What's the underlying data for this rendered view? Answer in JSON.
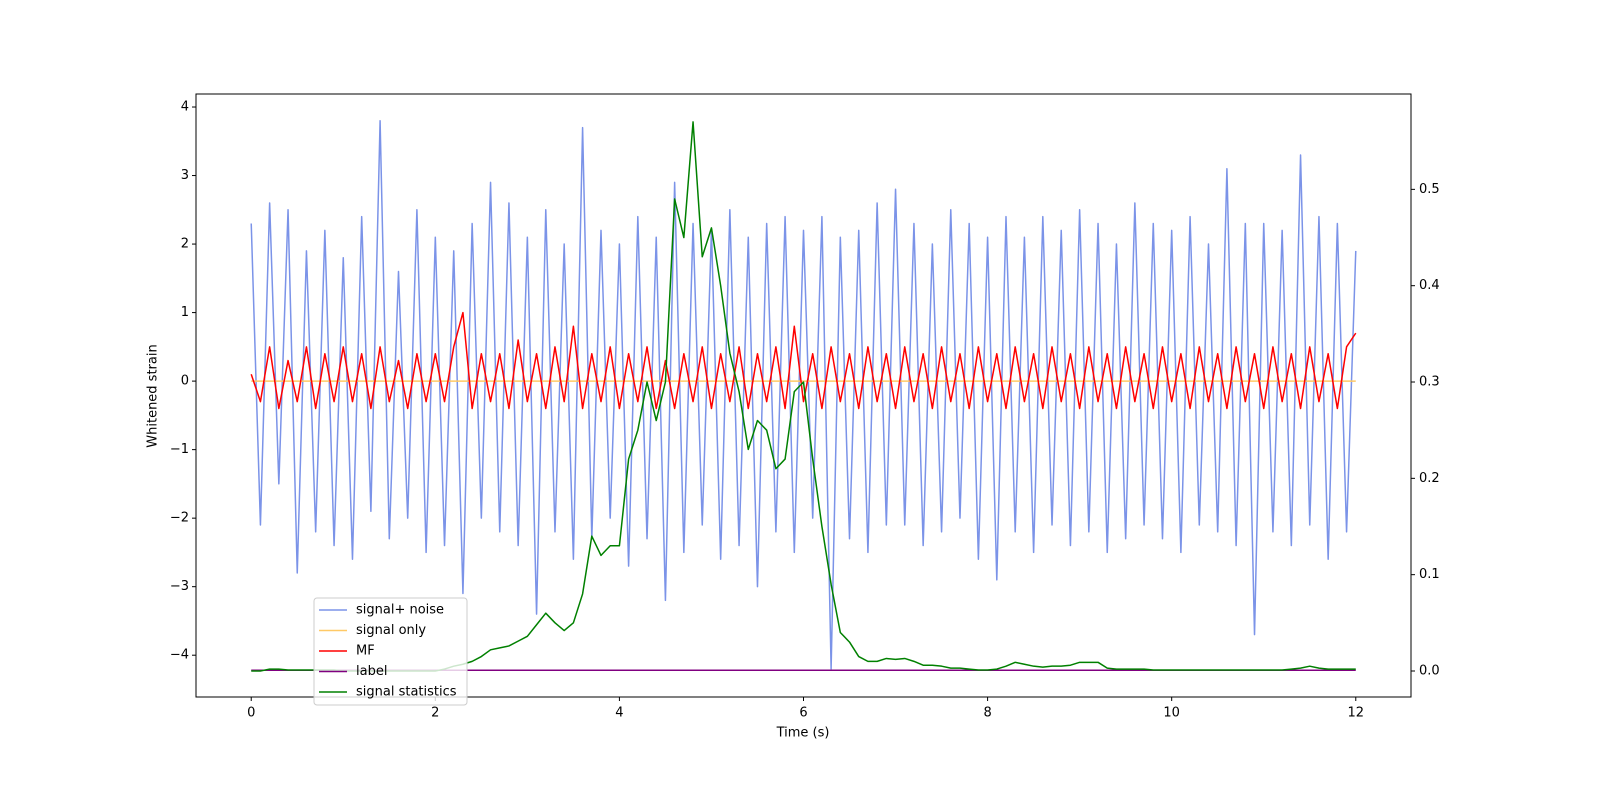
{
  "chart_data": {
    "type": "line",
    "xlabel": "Time (s)",
    "ylabel": "Whitened strain",
    "x": [
      0,
      0.1,
      0.2,
      0.3,
      0.4,
      0.5,
      0.6,
      0.7,
      0.8,
      0.9,
      1,
      1.1,
      1.2,
      1.3,
      1.4,
      1.5,
      1.6,
      1.7,
      1.8,
      1.9,
      2,
      2.1,
      2.2,
      2.3,
      2.4,
      2.5,
      2.6,
      2.7,
      2.8,
      2.9,
      3,
      3.1,
      3.2,
      3.3,
      3.4,
      3.5,
      3.6,
      3.7,
      3.8,
      3.9,
      4,
      4.1,
      4.2,
      4.3,
      4.4,
      4.5,
      4.6,
      4.7,
      4.8,
      4.9,
      5,
      5.1,
      5.2,
      5.3,
      5.4,
      5.5,
      5.6,
      5.7,
      5.8,
      5.9,
      6,
      6.1,
      6.2,
      6.3,
      6.4,
      6.5,
      6.6,
      6.7,
      6.8,
      6.9,
      7,
      7.1,
      7.2,
      7.3,
      7.4,
      7.5,
      7.6,
      7.7,
      7.8,
      7.9,
      8,
      8.1,
      8.2,
      8.3,
      8.4,
      8.5,
      8.6,
      8.7,
      8.8,
      8.9,
      9,
      9.1,
      9.2,
      9.3,
      9.4,
      9.5,
      9.6,
      9.7,
      9.8,
      9.9,
      10,
      10.1,
      10.2,
      10.3,
      10.4,
      10.5,
      10.6,
      10.7,
      10.8,
      10.9,
      11,
      11.1,
      11.2,
      11.3,
      11.4,
      11.5,
      11.6,
      11.7,
      11.8,
      11.9,
      12
    ],
    "series": [
      {
        "name": "signal+ noise",
        "color": "#7b93e8",
        "values": [
          2.3,
          -2.1,
          2.6,
          -1.5,
          2.5,
          -2.8,
          1.9,
          -2.2,
          2.2,
          -2.4,
          1.8,
          -2.6,
          2.4,
          -1.9,
          3.8,
          -2.3,
          1.6,
          -2.0,
          2.5,
          -2.5,
          2.1,
          -2.4,
          1.9,
          -3.1,
          2.3,
          -2.0,
          2.9,
          -2.2,
          2.6,
          -2.4,
          2.1,
          -3.4,
          2.5,
          -2.2,
          2.0,
          -2.6,
          3.7,
          -2.3,
          2.2,
          -2.0,
          2.0,
          -2.7,
          2.4,
          -2.3,
          2.1,
          -3.2,
          2.9,
          -2.5,
          2.3,
          -2.1,
          2.2,
          -2.6,
          2.5,
          -2.4,
          2.1,
          -3.0,
          2.3,
          -2.2,
          2.4,
          -2.5,
          2.2,
          -2.0,
          2.4,
          -4.2,
          2.1,
          -2.3,
          2.2,
          -2.5,
          2.6,
          -2.1,
          2.8,
          -2.1,
          2.3,
          -2.4,
          2.0,
          -2.2,
          2.5,
          -2.0,
          2.3,
          -2.6,
          2.1,
          -2.9,
          2.4,
          -2.2,
          2.1,
          -2.5,
          2.4,
          -2.1,
          2.2,
          -2.4,
          2.5,
          -2.2,
          2.3,
          -2.5,
          2.0,
          -2.3,
          2.6,
          -2.1,
          2.3,
          -2.3,
          2.2,
          -2.5,
          2.4,
          -2.1,
          2.0,
          -2.2,
          3.1,
          -2.4,
          2.3,
          -3.7,
          2.3,
          -2.2,
          2.2,
          -2.4,
          3.3,
          -2.1,
          2.4,
          -2.6,
          2.3,
          -2.2,
          1.9
        ]
      },
      {
        "name": "signal only",
        "color": "#ffc966",
        "x": [
          0,
          12
        ],
        "values": [
          0,
          0
        ]
      },
      {
        "name": "MF",
        "color": "#ff0000",
        "values": [
          0.1,
          -0.3,
          0.5,
          -0.4,
          0.3,
          -0.3,
          0.5,
          -0.4,
          0.4,
          -0.3,
          0.5,
          -0.3,
          0.4,
          -0.4,
          0.5,
          -0.3,
          0.3,
          -0.4,
          0.4,
          -0.3,
          0.4,
          -0.3,
          0.5,
          1.0,
          -0.4,
          0.4,
          -0.3,
          0.4,
          -0.4,
          0.6,
          -0.3,
          0.4,
          -0.4,
          0.5,
          -0.3,
          0.8,
          -0.4,
          0.4,
          -0.3,
          0.5,
          -0.4,
          0.4,
          -0.3,
          0.5,
          -0.4,
          0.3,
          -0.4,
          0.4,
          -0.3,
          0.5,
          -0.4,
          0.4,
          -0.3,
          0.5,
          -0.4,
          0.4,
          -0.3,
          0.5,
          -0.4,
          0.8,
          -0.3,
          0.4,
          -0.4,
          0.5,
          -0.3,
          0.4,
          -0.4,
          0.5,
          -0.3,
          0.4,
          -0.4,
          0.5,
          -0.3,
          0.4,
          -0.4,
          0.5,
          -0.3,
          0.4,
          -0.4,
          0.5,
          -0.3,
          0.4,
          -0.4,
          0.5,
          -0.3,
          0.4,
          -0.4,
          0.5,
          -0.3,
          0.4,
          -0.4,
          0.5,
          -0.3,
          0.4,
          -0.4,
          0.5,
          -0.3,
          0.4,
          -0.4,
          0.5,
          -0.3,
          0.4,
          -0.4,
          0.5,
          -0.3,
          0.4,
          -0.4,
          0.5,
          -0.3,
          0.4,
          -0.4,
          0.5,
          -0.3,
          0.4,
          -0.4,
          0.5,
          -0.3,
          0.4,
          -0.4,
          0.5,
          0.7
        ]
      },
      {
        "name": "label",
        "color": "#800080",
        "x": [
          0,
          12
        ],
        "values": [
          -4.22,
          -4.22
        ]
      },
      {
        "name": "signal statistics",
        "color": "#008000",
        "axis": "y2",
        "values": [
          0,
          0,
          0.002,
          0.002,
          0.001,
          0.001,
          0.001,
          0.001,
          0.001,
          0.001,
          0,
          0,
          0,
          0,
          0,
          0,
          0,
          0,
          0,
          0,
          0,
          0.002,
          0.005,
          0.007,
          0.01,
          0.015,
          0.022,
          0.024,
          0.026,
          0.031,
          0.036,
          0.048,
          0.06,
          0.05,
          0.042,
          0.05,
          0.08,
          0.14,
          0.12,
          0.13,
          0.13,
          0.22,
          0.25,
          0.3,
          0.26,
          0.3,
          0.49,
          0.45,
          0.57,
          0.43,
          0.46,
          0.4,
          0.33,
          0.29,
          0.23,
          0.26,
          0.25,
          0.21,
          0.22,
          0.29,
          0.3,
          0.22,
          0.15,
          0.09,
          0.04,
          0.03,
          0.015,
          0.01,
          0.01,
          0.013,
          0.012,
          0.013,
          0.01,
          0.006,
          0.006,
          0.005,
          0.003,
          0.003,
          0.002,
          0.001,
          0.001,
          0.002,
          0.005,
          0.009,
          0.007,
          0.005,
          0.004,
          0.005,
          0.005,
          0.006,
          0.009,
          0.009,
          0.009,
          0.003,
          0.002,
          0.002,
          0.002,
          0.002,
          0.001,
          0.001,
          0.001,
          0.001,
          0.001,
          0.001,
          0.001,
          0.001,
          0.001,
          0.001,
          0.001,
          0.001,
          0.001,
          0.001,
          0.001,
          0.002,
          0.003,
          0.005,
          0.003,
          0.002,
          0.002,
          0.002,
          0.002
        ]
      }
    ],
    "xlim": [
      -0.6,
      12.6
    ],
    "xticks": [
      0,
      2,
      4,
      6,
      8,
      10,
      12
    ],
    "ylim": [
      -4.61,
      4.19
    ],
    "yticks": [
      {
        "value": -4,
        "label": "−4"
      },
      {
        "value": -3,
        "label": "−3"
      },
      {
        "value": -2,
        "label": "−2"
      },
      {
        "value": -1,
        "label": "−1"
      },
      0,
      1,
      2,
      3,
      4
    ],
    "y2lim": [
      -0.027,
      0.599
    ],
    "y2ticks": [
      {
        "value": 0,
        "label": "0.0"
      },
      0.1,
      0.2,
      0.3,
      0.4,
      0.5
    ],
    "legend": "lower left"
  }
}
